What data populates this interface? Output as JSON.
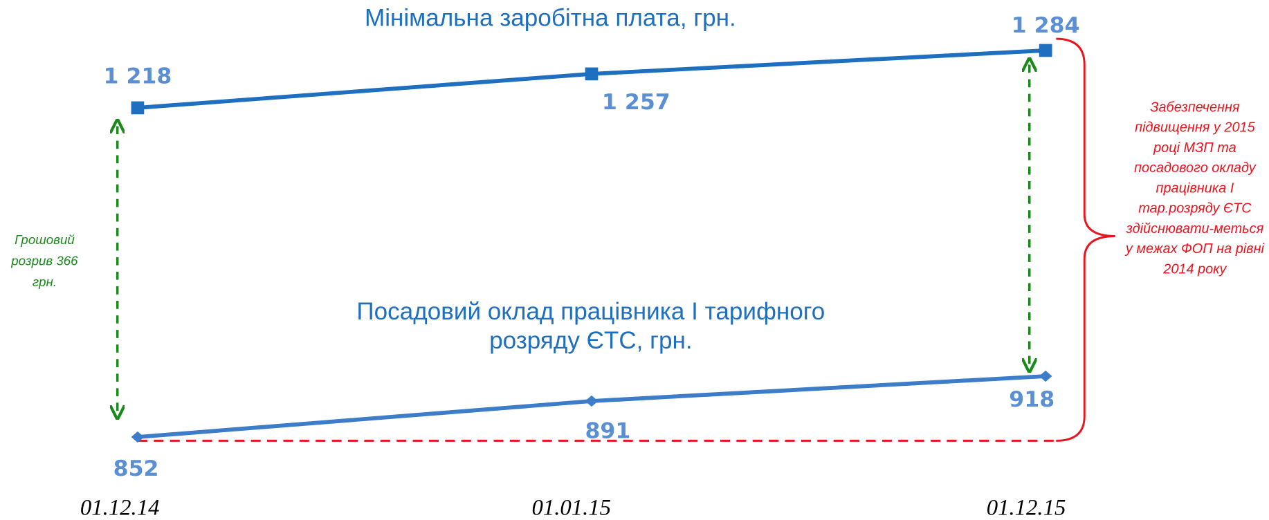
{
  "chart_data": {
    "type": "line",
    "categories": [
      "01.12.14",
      "01.01.15",
      "01.12.15"
    ],
    "ylim": [
      762,
      1326
    ],
    "y2lim": [
      744,
      1342
    ],
    "series": [
      {
        "name": "Мінімальна заробітна плата, грн.",
        "color": "#1f6fc0",
        "marker": "square",
        "axis": "y2",
        "values": [
          1218,
          1257,
          1284
        ],
        "value_labels": [
          "1 218",
          "1 257",
          "1 284"
        ]
      },
      {
        "name": "Посадовий оклад працівника І тарифного розряду ЄТС, грн.",
        "color": "#3d7cc9",
        "marker": "diamond",
        "values": [
          852,
          891,
          918
        ],
        "value_labels": [
          "852",
          "891",
          "918"
        ]
      }
    ],
    "annotations": [
      "Грошовий розрив 366 грн.",
      "Забезпечення підвищення у 2015 році МЗП та посадового окладу працівника І тар.розряду ЄТС здійснювати-меться у межах ФОП на рівні 2014 року"
    ]
  }
}
